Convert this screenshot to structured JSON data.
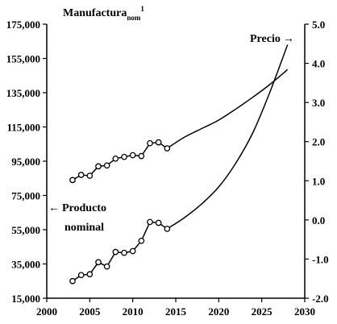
{
  "chart_data": {
    "type": "line",
    "title_main": "Manufactura",
    "title_sub": "nom",
    "title_sup": "1",
    "x_ticks": [
      "2000",
      "2005",
      "2010",
      "2015",
      "2020",
      "2025",
      "2030"
    ],
    "xlim": [
      2000,
      2030
    ],
    "y_left_ticks": [
      "175,000",
      "155,000",
      "135,000",
      "115,000",
      "95,000",
      "75,000",
      "55,000",
      "35,000",
      "15,000"
    ],
    "ylim_left": [
      15000,
      175000
    ],
    "y_right_ticks": [
      "5.0",
      "4.0",
      "3.0",
      "2.0",
      "1.0",
      "0.0",
      "-1.0",
      "-2.0"
    ],
    "ylim_right": [
      -2.0,
      5.0
    ],
    "annotations": {
      "price_label": "Precio",
      "price_arrow": "→",
      "product_arrow": "←",
      "product_line1": "Producto",
      "product_line2": "nominal"
    },
    "series": [
      {
        "axis": "left",
        "marker": "circle-open",
        "points": [
          [
            2003,
            84000
          ],
          [
            2004,
            87000
          ],
          [
            2005,
            86500
          ],
          [
            2006,
            92000
          ],
          [
            2007,
            92500
          ],
          [
            2008,
            96500
          ],
          [
            2009,
            97500
          ],
          [
            2010,
            98500
          ],
          [
            2011,
            98000
          ],
          [
            2012,
            105500
          ],
          [
            2013,
            106000
          ],
          [
            2014,
            102500
          ]
        ],
        "projection": [
          [
            2014,
            102500
          ],
          [
            2016,
            109000
          ],
          [
            2018,
            114000
          ],
          [
            2020,
            119000
          ],
          [
            2022,
            125500
          ],
          [
            2024,
            132500
          ],
          [
            2026,
            140000
          ],
          [
            2028,
            148500
          ]
        ]
      },
      {
        "axis": "left",
        "marker": "circle-open",
        "points": [
          [
            2003,
            25000
          ],
          [
            2004,
            28500
          ],
          [
            2005,
            29000
          ],
          [
            2006,
            36000
          ],
          [
            2007,
            33500
          ],
          [
            2008,
            42000
          ],
          [
            2009,
            41500
          ],
          [
            2010,
            42500
          ],
          [
            2011,
            48500
          ],
          [
            2012,
            59500
          ],
          [
            2013,
            59000
          ],
          [
            2014,
            55500
          ]
        ],
        "projection": [
          [
            2014,
            55500
          ],
          [
            2016,
            62000
          ],
          [
            2018,
            70000
          ],
          [
            2020,
            80000
          ],
          [
            2022,
            94000
          ],
          [
            2024,
            112000
          ],
          [
            2026,
            136000
          ],
          [
            2028,
            163000
          ]
        ]
      }
    ]
  }
}
